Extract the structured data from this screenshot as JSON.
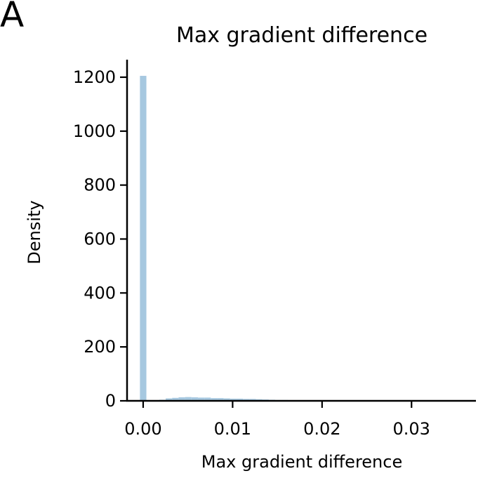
{
  "panel_label": "A",
  "chart_data": {
    "type": "bar",
    "title": "Max gradient difference",
    "xlabel": "Max gradient difference",
    "ylabel": "Density",
    "xlim": [
      -0.0018,
      0.0372
    ],
    "ylim": [
      0,
      1265
    ],
    "xticks": [
      0.0,
      0.01,
      0.02,
      0.03
    ],
    "xtick_labels": [
      "0.00",
      "0.01",
      "0.02",
      "0.03"
    ],
    "yticks": [
      0,
      200,
      400,
      600,
      800,
      1000,
      1200
    ],
    "ytick_labels": [
      "0",
      "200",
      "400",
      "600",
      "800",
      "1000",
      "1200"
    ],
    "bin_width": 0.00072,
    "bins": [
      {
        "x": 0.0,
        "value": 1205
      },
      {
        "x": 0.00216,
        "value": 4
      },
      {
        "x": 0.00288,
        "value": 9
      },
      {
        "x": 0.0036,
        "value": 11
      },
      {
        "x": 0.00432,
        "value": 13
      },
      {
        "x": 0.00504,
        "value": 14
      },
      {
        "x": 0.00576,
        "value": 13
      },
      {
        "x": 0.00648,
        "value": 12
      },
      {
        "x": 0.0072,
        "value": 12
      },
      {
        "x": 0.00792,
        "value": 10
      },
      {
        "x": 0.00864,
        "value": 10
      },
      {
        "x": 0.00936,
        "value": 9
      },
      {
        "x": 0.01008,
        "value": 8
      },
      {
        "x": 0.0108,
        "value": 8
      },
      {
        "x": 0.01152,
        "value": 7
      },
      {
        "x": 0.01224,
        "value": 7
      },
      {
        "x": 0.01296,
        "value": 6
      },
      {
        "x": 0.01368,
        "value": 5
      },
      {
        "x": 0.0144,
        "value": 4
      },
      {
        "x": 0.01512,
        "value": 3
      },
      {
        "x": 0.01584,
        "value": 3
      },
      {
        "x": 0.01656,
        "value": 2
      },
      {
        "x": 0.01728,
        "value": 2
      },
      {
        "x": 0.018,
        "value": 1
      },
      {
        "x": 0.01872,
        "value": 1
      },
      {
        "x": 0.02,
        "value": 1
      },
      {
        "x": 0.022,
        "value": 0.5
      },
      {
        "x": 0.025,
        "value": 0.5
      },
      {
        "x": 0.03,
        "value": 0.3
      }
    ],
    "bar_color": "#a6c8e0",
    "grid": false
  }
}
